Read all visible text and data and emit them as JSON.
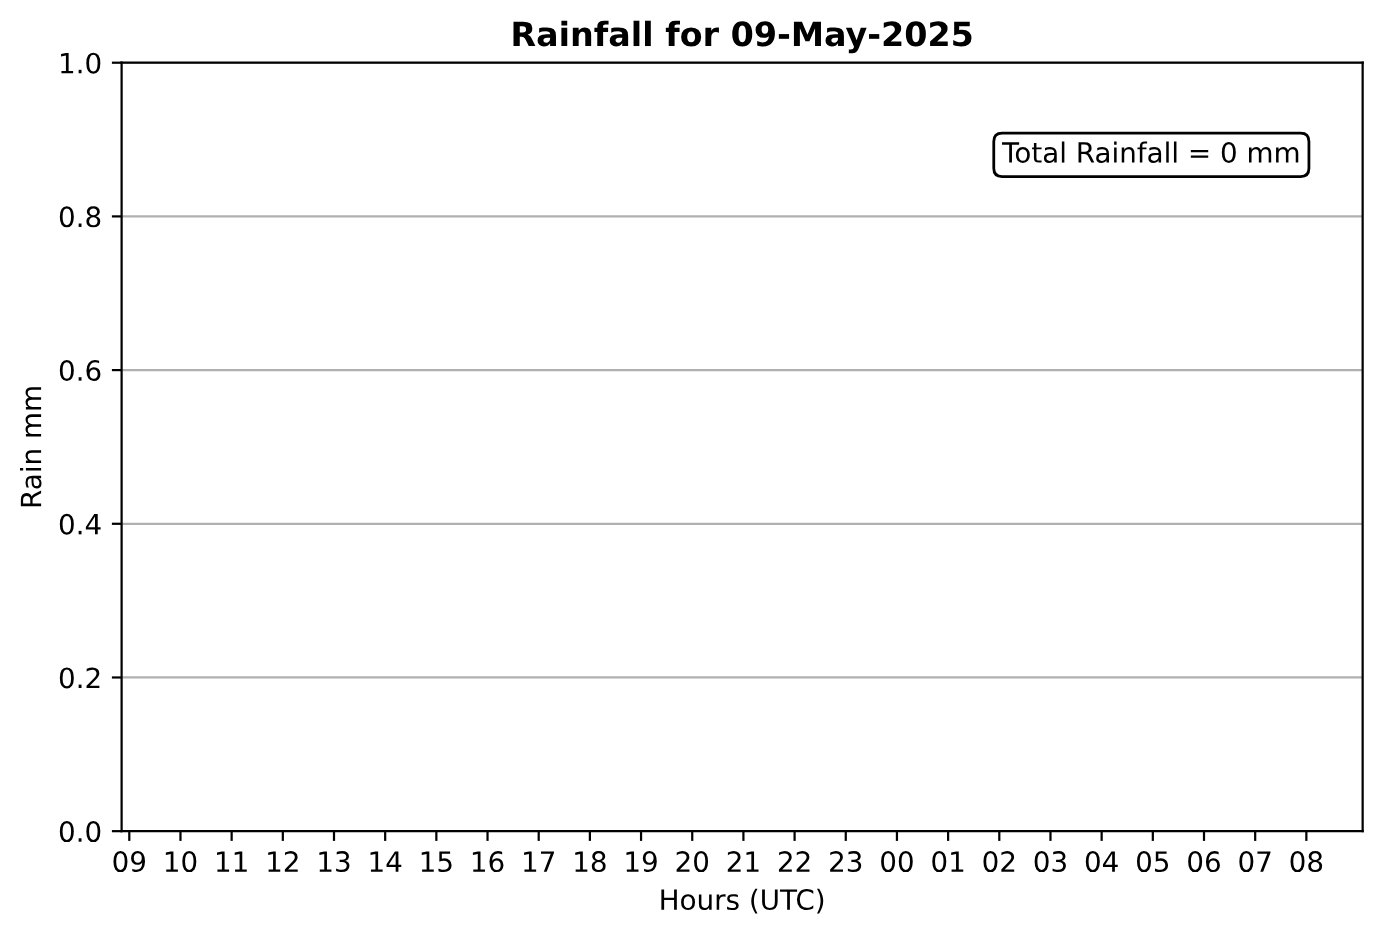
{
  "chart_data": {
    "type": "bar",
    "title": "Rainfall for 09-May-2025",
    "xlabel": "Hours (UTC)",
    "ylabel": "Rain mm",
    "categories": [
      "09",
      "10",
      "11",
      "12",
      "13",
      "14",
      "15",
      "16",
      "17",
      "18",
      "19",
      "20",
      "21",
      "22",
      "23",
      "00",
      "01",
      "02",
      "03",
      "04",
      "05",
      "06",
      "07",
      "08"
    ],
    "values": [
      0,
      0,
      0,
      0,
      0,
      0,
      0,
      0,
      0,
      0,
      0,
      0,
      0,
      0,
      0,
      0,
      0,
      0,
      0,
      0,
      0,
      0,
      0,
      0
    ],
    "ylim": [
      0,
      1
    ],
    "yticks": [
      {
        "value": 0,
        "label": "0.0"
      },
      0.2,
      0.4,
      0.6,
      0.8,
      {
        "value": 1,
        "label": "1.0"
      }
    ],
    "grid": "y",
    "annotations": [
      "Total Rainfall = 0 mm"
    ]
  }
}
